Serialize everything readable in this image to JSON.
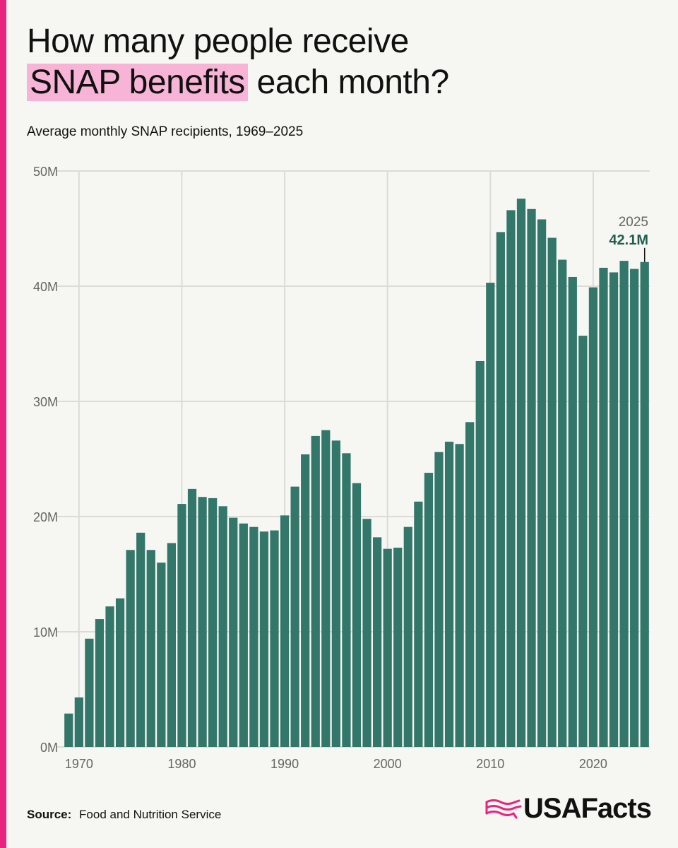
{
  "header": {
    "title_line1": "How many people receive",
    "title_highlight": "SNAP benefits",
    "title_rest": " each month?",
    "subtitle": "Average monthly SNAP recipients, 1969–2025"
  },
  "colors": {
    "accent": "#e8247f",
    "highlight": "#f8b4d7",
    "bar": "#33766a",
    "annotation_value": "#1f5e4f"
  },
  "chart_data": {
    "type": "bar",
    "title": "How many people receive SNAP benefits each month?",
    "subtitle": "Average monthly SNAP recipients, 1969–2025",
    "xlabel": "",
    "ylabel": "",
    "unit": "millions",
    "ylim": [
      0,
      50
    ],
    "yticks": [
      0,
      10,
      20,
      30,
      40,
      50
    ],
    "ytick_labels": [
      "0M",
      "10M",
      "20M",
      "30M",
      "40M",
      "50M"
    ],
    "xticks": [
      1970,
      1980,
      1990,
      2000,
      2010,
      2020
    ],
    "xtick_labels": [
      "1970",
      "1980",
      "1990",
      "2000",
      "2010",
      "2020"
    ],
    "grid": true,
    "categories": [
      1969,
      1970,
      1971,
      1972,
      1973,
      1974,
      1975,
      1976,
      1977,
      1978,
      1979,
      1980,
      1981,
      1982,
      1983,
      1984,
      1985,
      1986,
      1987,
      1988,
      1989,
      1990,
      1991,
      1992,
      1993,
      1994,
      1995,
      1996,
      1997,
      1998,
      1999,
      2000,
      2001,
      2002,
      2003,
      2004,
      2005,
      2006,
      2007,
      2008,
      2009,
      2010,
      2011,
      2012,
      2013,
      2014,
      2015,
      2016,
      2017,
      2018,
      2019,
      2020,
      2021,
      2022,
      2023,
      2024,
      2025
    ],
    "values": [
      2.9,
      4.3,
      9.4,
      11.1,
      12.2,
      12.9,
      17.1,
      18.6,
      17.1,
      16.0,
      17.7,
      21.1,
      22.4,
      21.7,
      21.6,
      20.9,
      19.9,
      19.4,
      19.1,
      18.7,
      18.8,
      20.1,
      22.6,
      25.4,
      27.0,
      27.5,
      26.6,
      25.5,
      22.9,
      19.8,
      18.2,
      17.2,
      17.3,
      19.1,
      21.3,
      23.8,
      25.6,
      26.5,
      26.3,
      28.2,
      33.5,
      40.3,
      44.7,
      46.6,
      47.6,
      46.7,
      45.8,
      44.2,
      42.3,
      40.8,
      35.7,
      39.9,
      41.6,
      41.2,
      42.2,
      41.5,
      42.1
    ],
    "annotation": {
      "year_label": "2025",
      "value_label": "42.1M"
    }
  },
  "footer": {
    "source_label": "Source:",
    "source_text": "Food and Nutrition Service",
    "logo_text": "USAFacts",
    "logo_icon": "usa-map-waves-icon"
  }
}
